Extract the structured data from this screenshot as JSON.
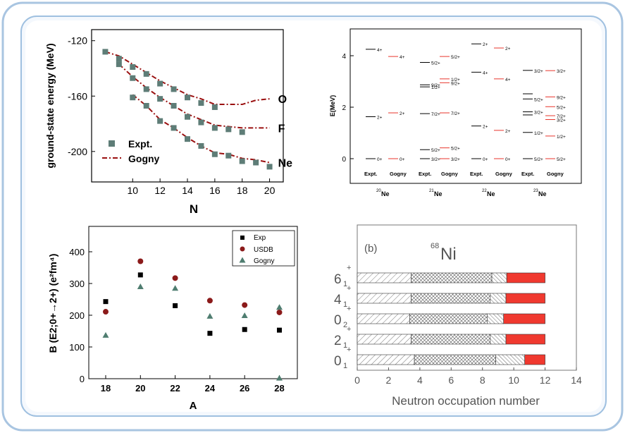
{
  "colors": {
    "frame_border": "#a9c5e1",
    "frame_bg": "#f1f6fc",
    "expt": "#5e7d77",
    "gogny_line": "#9a1010",
    "exp_black": "#000000",
    "usdb": "#8b1a1a",
    "gogny_tri": "#4f7d70",
    "red_level": "#e8362c",
    "bar_red": "#f0392f"
  },
  "chart_data": [
    {
      "id": "ground_state",
      "type": "scatter",
      "xlabel": "N",
      "ylabel": "ground-state energy (MeV)",
      "xlim": [
        7,
        21
      ],
      "ylim": [
        -222,
        -112
      ],
      "xticks": [
        10,
        12,
        14,
        16,
        18,
        20
      ],
      "yticks": [
        -120,
        -160,
        -200
      ],
      "legend": [
        "Expt.",
        "Gogny"
      ],
      "series": [
        {
          "name": "O",
          "expt": [
            [
              8,
              -128
            ],
            [
              9,
              -133
            ],
            [
              10,
              -139
            ],
            [
              11,
              -144
            ],
            [
              12,
              -151
            ],
            [
              13,
              -155
            ],
            [
              14,
              -161
            ],
            [
              15,
              -165
            ],
            [
              16,
              -168
            ]
          ],
          "gogny": [
            [
              8,
              -128
            ],
            [
              9,
              -131
            ],
            [
              10,
              -137
            ],
            [
              11,
              -143
            ],
            [
              12,
              -149
            ],
            [
              13,
              -154
            ],
            [
              14,
              -159
            ],
            [
              15,
              -162
            ],
            [
              16,
              -166
            ],
            [
              17,
              -166
            ],
            [
              18,
              -166
            ],
            [
              19,
              -163
            ],
            [
              20,
              -162
            ]
          ]
        },
        {
          "name": "F",
          "expt": [
            [
              9,
              -137
            ],
            [
              10,
              -147
            ],
            [
              11,
              -155
            ],
            [
              12,
              -162
            ],
            [
              13,
              -167
            ],
            [
              14,
              -175
            ],
            [
              15,
              -179
            ],
            [
              16,
              -183
            ],
            [
              17,
              -184
            ],
            [
              18,
              -186
            ]
          ],
          "gogny": [
            [
              9,
              -137
            ],
            [
              10,
              -146
            ],
            [
              11,
              -154
            ],
            [
              12,
              -161
            ],
            [
              13,
              -167
            ],
            [
              14,
              -173
            ],
            [
              15,
              -177
            ],
            [
              16,
              -181
            ],
            [
              17,
              -182
            ],
            [
              18,
              -183
            ],
            [
              19,
              -183
            ],
            [
              20,
              -183
            ]
          ]
        },
        {
          "name": "Ne",
          "expt": [
            [
              10,
              -161
            ],
            [
              11,
              -167
            ],
            [
              12,
              -178
            ],
            [
              13,
              -183
            ],
            [
              14,
              -191
            ],
            [
              15,
              -196
            ],
            [
              16,
              -202
            ],
            [
              17,
              -203
            ],
            [
              18,
              -207
            ],
            [
              19,
              -208
            ],
            [
              20,
              -211
            ]
          ],
          "gogny": [
            [
              10,
              -159
            ],
            [
              11,
              -167
            ],
            [
              12,
              -177
            ],
            [
              13,
              -183
            ],
            [
              14,
              -190
            ],
            [
              15,
              -196
            ],
            [
              16,
              -201
            ],
            [
              17,
              -202
            ],
            [
              18,
              -205
            ],
            [
              19,
              -206
            ],
            [
              20,
              -208
            ]
          ]
        }
      ]
    },
    {
      "id": "levels",
      "type": "level-scheme",
      "ylabel": "E(MeV)",
      "ylim": [
        0,
        4.9
      ],
      "yticks": [
        0,
        2,
        4
      ],
      "groups": [
        {
          "nucleus": "20Ne",
          "mass": "20",
          "symbol": "Ne",
          "expt": [
            {
              "e": 0,
              "j": "0+"
            },
            {
              "e": 1.63,
              "j": "2+"
            },
            {
              "e": 4.25,
              "j": "4+"
            }
          ],
          "gogny": [
            {
              "e": 0,
              "j": "0+"
            },
            {
              "e": 1.78,
              "j": "2+"
            },
            {
              "e": 3.97,
              "j": "4+"
            }
          ]
        },
        {
          "nucleus": "21Ne",
          "mass": "21",
          "symbol": "Ne",
          "expt": [
            {
              "e": 0,
              "j": "3/2+"
            },
            {
              "e": 0.35,
              "j": "5/2+"
            },
            {
              "e": 1.75,
              "j": "7/2+"
            },
            {
              "e": 2.79,
              "j": "1/2+"
            },
            {
              "e": 2.87,
              "j": "9/2+"
            },
            {
              "e": 3.74,
              "j": "5/2+"
            }
          ],
          "gogny": [
            {
              "e": 0,
              "j": "3/2+"
            },
            {
              "e": 0.42,
              "j": "5/2+"
            },
            {
              "e": 1.78,
              "j": "7/2+"
            },
            {
              "e": 2.95,
              "j": "9/2+"
            },
            {
              "e": 3.1,
              "j": "1/2+"
            },
            {
              "e": 3.97,
              "j": "5/2+"
            }
          ]
        },
        {
          "nucleus": "22Ne",
          "mass": "22",
          "symbol": "Ne",
          "expt": [
            {
              "e": 0,
              "j": "0+"
            },
            {
              "e": 1.27,
              "j": "2+"
            },
            {
              "e": 3.36,
              "j": "4+"
            },
            {
              "e": 4.46,
              "j": "2+"
            }
          ],
          "gogny": [
            {
              "e": 0,
              "j": "0+"
            },
            {
              "e": 1.1,
              "j": "2+"
            },
            {
              "e": 3.1,
              "j": "4+"
            },
            {
              "e": 4.3,
              "j": "2+"
            }
          ]
        },
        {
          "nucleus": "23Ne",
          "mass": "23",
          "symbol": "Ne",
          "expt": [
            {
              "e": 0,
              "j": "5/2+"
            },
            {
              "e": 1.02,
              "j": "1/2+"
            },
            {
              "e": 1.7,
              "j": ""
            },
            {
              "e": 1.82,
              "j": "3/2+"
            },
            {
              "e": 2.32,
              "j": "5/2+"
            },
            {
              "e": 2.52,
              "j": ""
            },
            {
              "e": 3.43,
              "j": "3/2+"
            }
          ],
          "gogny": [
            {
              "e": 0,
              "j": "5/2+"
            },
            {
              "e": 0.88,
              "j": "1/2+"
            },
            {
              "e": 1.52,
              "j": "3/2+"
            },
            {
              "e": 1.67,
              "j": "7/2+"
            },
            {
              "e": 2.02,
              "j": "5/2+"
            },
            {
              "e": 2.4,
              "j": "9/2+"
            },
            {
              "e": 3.42,
              "j": "3/2+"
            }
          ]
        }
      ],
      "col_labels": [
        "Expt.",
        "Gogny"
      ]
    },
    {
      "id": "be2",
      "type": "scatter",
      "xlabel": "A",
      "ylabel": "B (E2;0+→2+) (e²fm⁴)",
      "ylim": [
        0,
        480
      ],
      "yticks": [
        0,
        100,
        200,
        300,
        400
      ],
      "categories": [
        "18",
        "20",
        "22",
        "24",
        "26",
        "28"
      ],
      "legend": [
        "Exp",
        "USDB",
        "Gogny"
      ],
      "series": [
        {
          "name": "Exp",
          "values": [
            243,
            327,
            230,
            143,
            155,
            153
          ]
        },
        {
          "name": "USDB",
          "values": [
            211,
            370,
            317,
            246,
            232,
            209
          ]
        },
        {
          "name": "Gogny",
          "values": [
            137,
            290,
            285,
            197,
            199,
            225
          ]
        }
      ],
      "extra_points": [
        {
          "series": "Gogny",
          "a": "28",
          "value": 2
        }
      ]
    },
    {
      "id": "ni68",
      "type": "bar",
      "title": "(b)",
      "nucleus": "68Ni",
      "mass": "68",
      "symbol": "Ni",
      "xlabel": "Neutron occupation number",
      "xlim": [
        0,
        14
      ],
      "xticks": [
        0,
        2,
        4,
        6,
        8,
        10,
        12,
        14
      ],
      "states": [
        {
          "label": "6",
          "sub": "1",
          "sup": "+",
          "segments": [
            3.45,
            5.15,
            0.95,
            2.45
          ]
        },
        {
          "label": "4",
          "sub": "1",
          "sup": "+",
          "segments": [
            3.45,
            5.05,
            1.0,
            2.5
          ]
        },
        {
          "label": "0",
          "sub": "2",
          "sup": "+",
          "segments": [
            3.35,
            4.95,
            1.05,
            2.65
          ]
        },
        {
          "label": "2",
          "sub": "1",
          "sup": "+",
          "segments": [
            3.45,
            5.05,
            1.0,
            2.5
          ]
        },
        {
          "label": "0",
          "sub": "1",
          "sup": "+",
          "segments": [
            3.65,
            5.2,
            1.85,
            1.3
          ]
        }
      ]
    }
  ]
}
